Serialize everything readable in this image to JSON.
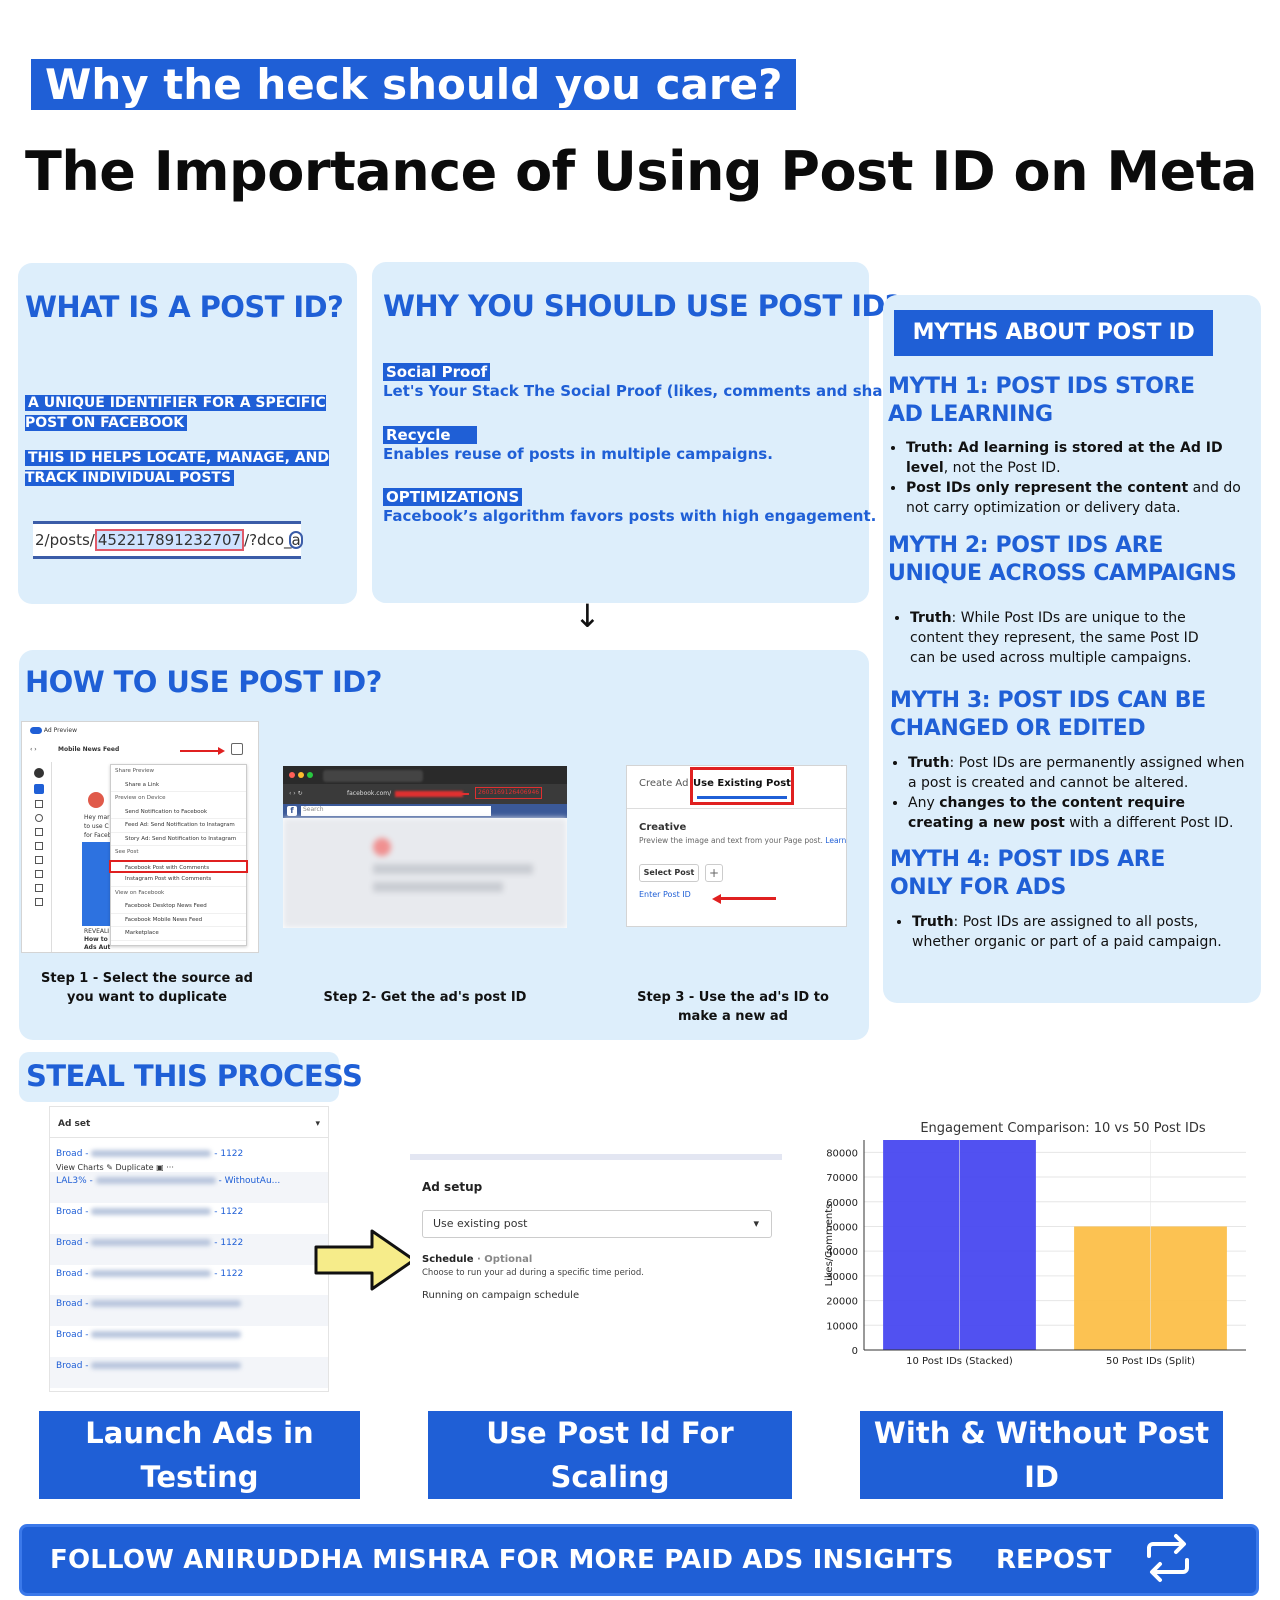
{
  "kicker": "Why the heck should you care?",
  "headline": "The Importance of Using Post ID on Meta",
  "what": {
    "title": "WHAT IS A POST ID?",
    "line1": "A UNIQUE IDENTIFIER FOR A SPECIFIC POST ON FACEBOOK",
    "line2": "THIS ID HELPS LOCATE, MANAGE, AND TRACK INDIVIDUAL  POSTS",
    "url_prefix": "2/posts/",
    "url_id": "452217891232707",
    "url_suffix": "/?dco_ad_"
  },
  "why": {
    "title": "WHY YOU SHOULD USE POST ID?",
    "items": [
      {
        "tag": "Social Proof",
        "text": "Let's Your Stack The Social Proof (likes, comments and shares)"
      },
      {
        "tag": "Recycle",
        "text": "Enables reuse of posts in multiple campaigns."
      },
      {
        "tag": "OPTIMIZATIONS",
        "text": "Facebook’s algorithm favors posts with high engagement."
      }
    ]
  },
  "myths": {
    "badge": "MYTHS ABOUT POST ID",
    "m1_title": "MYTH 1: POST IDS STORE AD LEARNING",
    "m1_b1_bold": "Truth",
    "m1_b1_bold2": ": Ad learning is stored at the Ad ID level",
    "m1_b1_rest": ", not the Post ID.",
    "m1_b2_bold": "Post IDs only represent the content",
    "m1_b2_rest": " and do not carry optimization or delivery data.",
    "m2_title": "MYTH 2: POST IDS ARE UNIQUE ACROSS CAMPAIGNS",
    "m2_b1_bold": "Truth",
    "m2_b1_rest": ": While Post IDs are unique to the content they represent, the same Post ID can be used across multiple campaigns.",
    "m3_title": "MYTH 3: POST IDS CAN BE CHANGED OR EDITED",
    "m3_b1_bold": "Truth",
    "m3_b1_rest": ": Post IDs are permanently assigned when a post is created and cannot be altered.",
    "m3_b2_pre": "Any ",
    "m3_b2_bold": "changes to the content require creating a new post",
    "m3_b2_rest": " with a different Post ID.",
    "m4_title": "MYTH 4: POST IDS ARE ONLY FOR ADS",
    "m4_b1_bold": "Truth",
    "m4_b1_rest": ": Post IDs are assigned to all posts, whether organic or part of a paid campaign."
  },
  "howto": {
    "title": "HOW TO USE POST ID?",
    "step1": "Step 1 - Select the source ad you want to duplicate",
    "step2": "Step 2- Get the ad's post ID",
    "step3": "Step 3 - Use the ad's ID to make a new ad",
    "s1": {
      "preview": "Ad Preview",
      "feed": "Mobile News Feed",
      "menu": [
        "Share Preview",
        "Share a Link",
        "Preview on Device",
        "Send Notification to Facebook",
        "Feed Ad: Send Notification to Instagram",
        "Story Ad: Send Notification to Instagram",
        "See Post",
        "Facebook Post with Comments",
        "Instagram Post with Comments",
        "View on Facebook",
        "Facebook Desktop News Feed",
        "Facebook Mobile News Feed",
        "Marketplace"
      ],
      "left1": "Hey mar",
      "left2": "to use C",
      "left3": "for Faceb",
      "reveal": "REVEALI",
      "howto": "How to I",
      "adsaut": "Ads Aut"
    },
    "s2": {
      "url": "facebook.com/",
      "url_id": "2603169126406946",
      "search": "Search"
    },
    "s3": {
      "tab1": "Create Ad",
      "tab2": "Use Existing Post",
      "creative": "Creative",
      "desc": "Preview the image and text from your Page post.",
      "learn": "Learn",
      "select": "Select Post",
      "enter": "Enter Post ID"
    }
  },
  "steal": {
    "title": "STEAL THIS PROCESS",
    "adset_header": "Ad set",
    "rows": [
      {
        "prefix": "Broad - ",
        "suffix": " - 1122"
      },
      {
        "prefix": "LAL3% - ",
        "suffix": " - WithoutAu..."
      },
      {
        "prefix": "Broad - ",
        "suffix": " - 1122"
      },
      {
        "prefix": "Broad - ",
        "suffix": " - 1122"
      },
      {
        "prefix": "Broad - ",
        "suffix": " - 1122"
      },
      {
        "prefix": "Broad - ",
        "suffix": ""
      },
      {
        "prefix": "Broad - ",
        "suffix": ""
      },
      {
        "prefix": "Broad - ",
        "suffix": ""
      }
    ],
    "view_charts": "View Charts",
    "duplicate": "Duplicate",
    "adsetup": {
      "title": "Ad setup",
      "select_value": "Use existing post",
      "schedule": "Schedule",
      "optional": "· Optional",
      "schedule_desc": "Choose to run your ad during a specific time period.",
      "running": "Running on campaign schedule"
    },
    "label1": "Launch Ads in Testing",
    "label2": "Use Post Id For Scaling",
    "label3": "With & Without Post ID"
  },
  "chart_data": {
    "type": "bar",
    "title": "Engagement Comparison: 10 vs 50 Post IDs",
    "categories": [
      "10 Post IDs (Stacked)",
      "50 Post IDs (Split)"
    ],
    "values": [
      85000,
      50000
    ],
    "colors": [
      "#4848f0",
      "#fcbf49"
    ],
    "xlabel": "",
    "ylabel": "Likes/Comments",
    "ylim": [
      0,
      85000
    ],
    "yticks": [
      0,
      10000,
      20000,
      30000,
      40000,
      50000,
      60000,
      70000,
      80000
    ],
    "grid": true
  },
  "footer": {
    "text": "FOLLOW ANIRUDDHA MISHRA FOR MORE PAID ADS INSIGHTS",
    "repost": "REPOST"
  },
  "arrow_down": "↓"
}
